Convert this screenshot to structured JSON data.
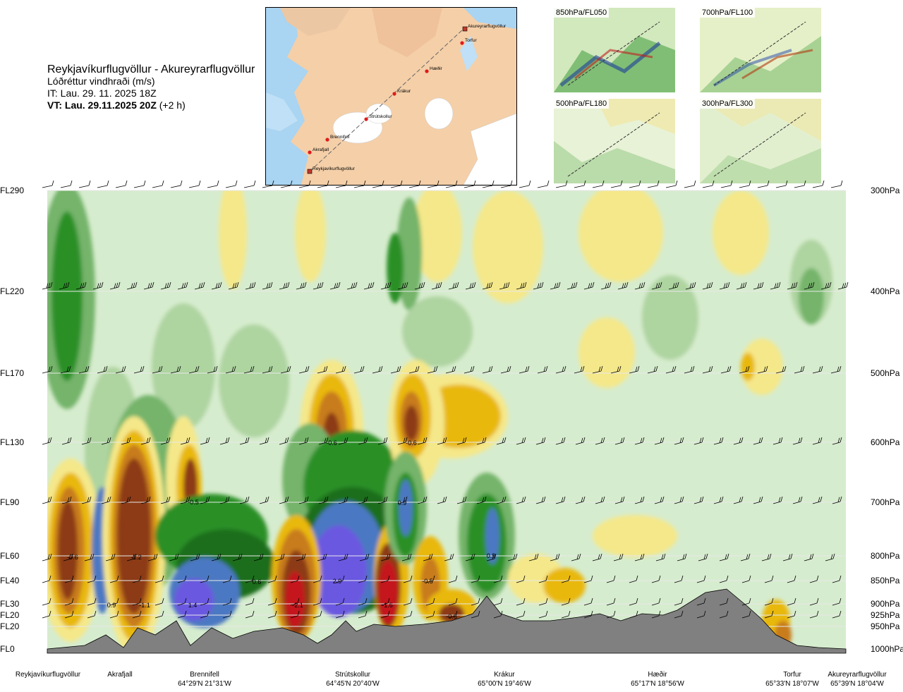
{
  "header": {
    "route": "Reykjavíkurflugvöllur - Akureyrarflugvöllur",
    "quantity": "Lóðréttur vindhraði (m/s)",
    "issue_time": "IT: Lau. 29. 11. 2025 18Z",
    "valid_prefix": "VT: Lau. 29.11.2025 20Z",
    "valid_suffix": "(+2 h)"
  },
  "map": {
    "waypoints": [
      "Akureyrarflugvöllur",
      "Torfur",
      "Hæðir",
      "Krákur",
      "Strútskollur",
      "Brennifell",
      "Akrafjall",
      "Reykjavíkurflugvöllur"
    ]
  },
  "thumbnails": [
    {
      "label": "850hPa/FL050"
    },
    {
      "label": "700hPa/FL100"
    },
    {
      "label": "500hPa/FL180"
    },
    {
      "label": "300hPa/FL300"
    }
  ],
  "chart_data": {
    "type": "heatmap",
    "title": "Lóðréttur vindhraði (m/s)",
    "y_levels": [
      {
        "fl": "FL290",
        "hpa": "300hPa"
      },
      {
        "fl": "FL220",
        "hpa": "400hPa"
      },
      {
        "fl": "FL170",
        "hpa": "500hPa"
      },
      {
        "fl": "FL130",
        "hpa": "600hPa"
      },
      {
        "fl": "FL90",
        "hpa": "700hPa"
      },
      {
        "fl": "FL60",
        "hpa": "800hPa"
      },
      {
        "fl": "FL40",
        "hpa": "850hPa"
      },
      {
        "fl": "FL30",
        "hpa": "900hPa"
      },
      {
        "fl": "FL20",
        "hpa": "925hPa"
      },
      {
        "fl": "FL20",
        "hpa": "950hPa"
      },
      {
        "fl": "FL0",
        "hpa": "1000hPa"
      }
    ],
    "locations": [
      {
        "name": "Reykjavíkurflugvöllur",
        "coord": ""
      },
      {
        "name": "Akrafjall",
        "coord": ""
      },
      {
        "name": "Brennifell",
        "coord": "64°29'N 21°31'W"
      },
      {
        "name": "Strútskollur",
        "coord": "64°45'N 20°40'W"
      },
      {
        "name": "Krákur",
        "coord": "65°00'N 19°46'W"
      },
      {
        "name": "Hæðir",
        "coord": "65°17'N 18°56'W"
      },
      {
        "name": "Torfur",
        "coord": "65°33'N 18°07'W"
      },
      {
        "name": "Akureyrarflugvöllur",
        "coord": "65°39'N 18°04'W"
      }
    ],
    "value_labels": [
      "-0.6",
      "-1.2",
      "0.9",
      "-1.1",
      "1.4",
      "-0.5",
      "0.6",
      "-2.1",
      "-0.6",
      "2.9",
      "-1.6",
      "-0.6",
      "0.9",
      "-0.5",
      "-0.6",
      "0.9"
    ],
    "colors": {
      "strong_sink": "#c4121a",
      "sink_dark": "#8c3a14",
      "sink_mid": "#c87b1c",
      "sink_light": "#e9b80e",
      "sink_pale": "#f5e88a",
      "neutral": "#ffffff",
      "rise_pale": "#d6ecce",
      "rise_light": "#aed4a0",
      "rise_mid": "#74b46a",
      "rise_dark": "#2a9028",
      "rise_strong": "#1a6e1a",
      "rise_blue": "#4c78c2",
      "rise_violet": "#6a58e0",
      "terrain": "#808080"
    }
  }
}
